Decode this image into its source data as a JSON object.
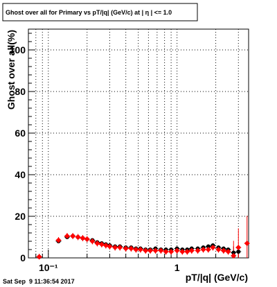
{
  "footer": {
    "timestamp": "Sat Sep  9 11:36:54 2017"
  },
  "chart_data": {
    "type": "scatter",
    "title": "Ghost over all for Primary vs pT/|q| (GeV/c) at |  η | <= 1.0",
    "xlabel": "pT/|q| (GeV/c)",
    "ylabel": "Ghost over all(%)",
    "x_scale": "log",
    "xlim": [
      0.07,
      3.6
    ],
    "ylim": [
      0,
      110
    ],
    "grid": true,
    "x_ticks": [
      {
        "label": "10⁻¹",
        "value": 0.1
      },
      {
        "label": "1",
        "value": 1
      }
    ],
    "y_ticks": [
      0,
      20,
      40,
      60,
      80,
      100
    ],
    "y_tick_labels": [
      "0",
      "20",
      "40",
      "60",
      "80",
      "100"
    ],
    "series": [
      {
        "color": "#000000",
        "marker": "circle",
        "points": [
          [
            0.085,
            0.5
          ],
          [
            0.12,
            8.0
          ],
          [
            0.14,
            10.0
          ],
          [
            0.155,
            10.5
          ],
          [
            0.17,
            10.0
          ],
          [
            0.185,
            9.5
          ],
          [
            0.2,
            9.0
          ],
          [
            0.22,
            8.5
          ],
          [
            0.24,
            7.5
          ],
          [
            0.26,
            7.0
          ],
          [
            0.28,
            6.5
          ],
          [
            0.3,
            6.0
          ],
          [
            0.33,
            5.5
          ],
          [
            0.36,
            5.5
          ],
          [
            0.4,
            5.0
          ],
          [
            0.44,
            5.0
          ],
          [
            0.48,
            4.5
          ],
          [
            0.52,
            4.5
          ],
          [
            0.57,
            4.0
          ],
          [
            0.62,
            4.0
          ],
          [
            0.68,
            4.5
          ],
          [
            0.75,
            4.0
          ],
          [
            0.82,
            4.0
          ],
          [
            0.9,
            4.0
          ],
          [
            1.0,
            4.5
          ],
          [
            1.1,
            4.0
          ],
          [
            1.2,
            4.0
          ],
          [
            1.3,
            4.5
          ],
          [
            1.45,
            4.5
          ],
          [
            1.6,
            5.0
          ],
          [
            1.75,
            5.5
          ],
          [
            1.9,
            6.0
          ],
          [
            2.1,
            5.0
          ],
          [
            2.3,
            4.5
          ],
          [
            2.5,
            4.0
          ],
          [
            2.75,
            2.5
          ],
          [
            3.0,
            3.0
          ]
        ]
      },
      {
        "color": "#ff0000",
        "marker": "diamond",
        "points": [
          [
            0.085,
            0.5
          ],
          [
            0.12,
            8.5
          ],
          [
            0.14,
            10.5
          ],
          [
            0.155,
            10.5
          ],
          [
            0.17,
            10.0
          ],
          [
            0.185,
            9.5
          ],
          [
            0.2,
            9.0
          ],
          [
            0.22,
            8.0
          ],
          [
            0.24,
            7.0
          ],
          [
            0.26,
            6.5
          ],
          [
            0.28,
            6.0
          ],
          [
            0.3,
            5.5
          ],
          [
            0.33,
            5.0
          ],
          [
            0.36,
            5.0
          ],
          [
            0.4,
            4.5
          ],
          [
            0.44,
            4.5
          ],
          [
            0.48,
            4.0
          ],
          [
            0.52,
            4.0
          ],
          [
            0.57,
            3.5
          ],
          [
            0.62,
            3.5
          ],
          [
            0.68,
            3.5
          ],
          [
            0.75,
            3.5
          ],
          [
            0.82,
            3.0
          ],
          [
            0.9,
            3.0
          ],
          [
            1.0,
            3.5
          ],
          [
            1.1,
            3.0
          ],
          [
            1.2,
            3.0
          ],
          [
            1.3,
            3.5
          ],
          [
            1.45,
            3.5
          ],
          [
            1.6,
            4.0
          ],
          [
            1.75,
            4.0
          ],
          [
            1.9,
            5.0
          ],
          [
            2.1,
            4.0
          ],
          [
            2.3,
            3.5
          ],
          [
            2.5,
            3.0
          ],
          [
            2.75,
            1.0
          ],
          [
            3.0,
            5.0
          ],
          [
            3.5,
            7.0
          ]
        ]
      }
    ]
  }
}
